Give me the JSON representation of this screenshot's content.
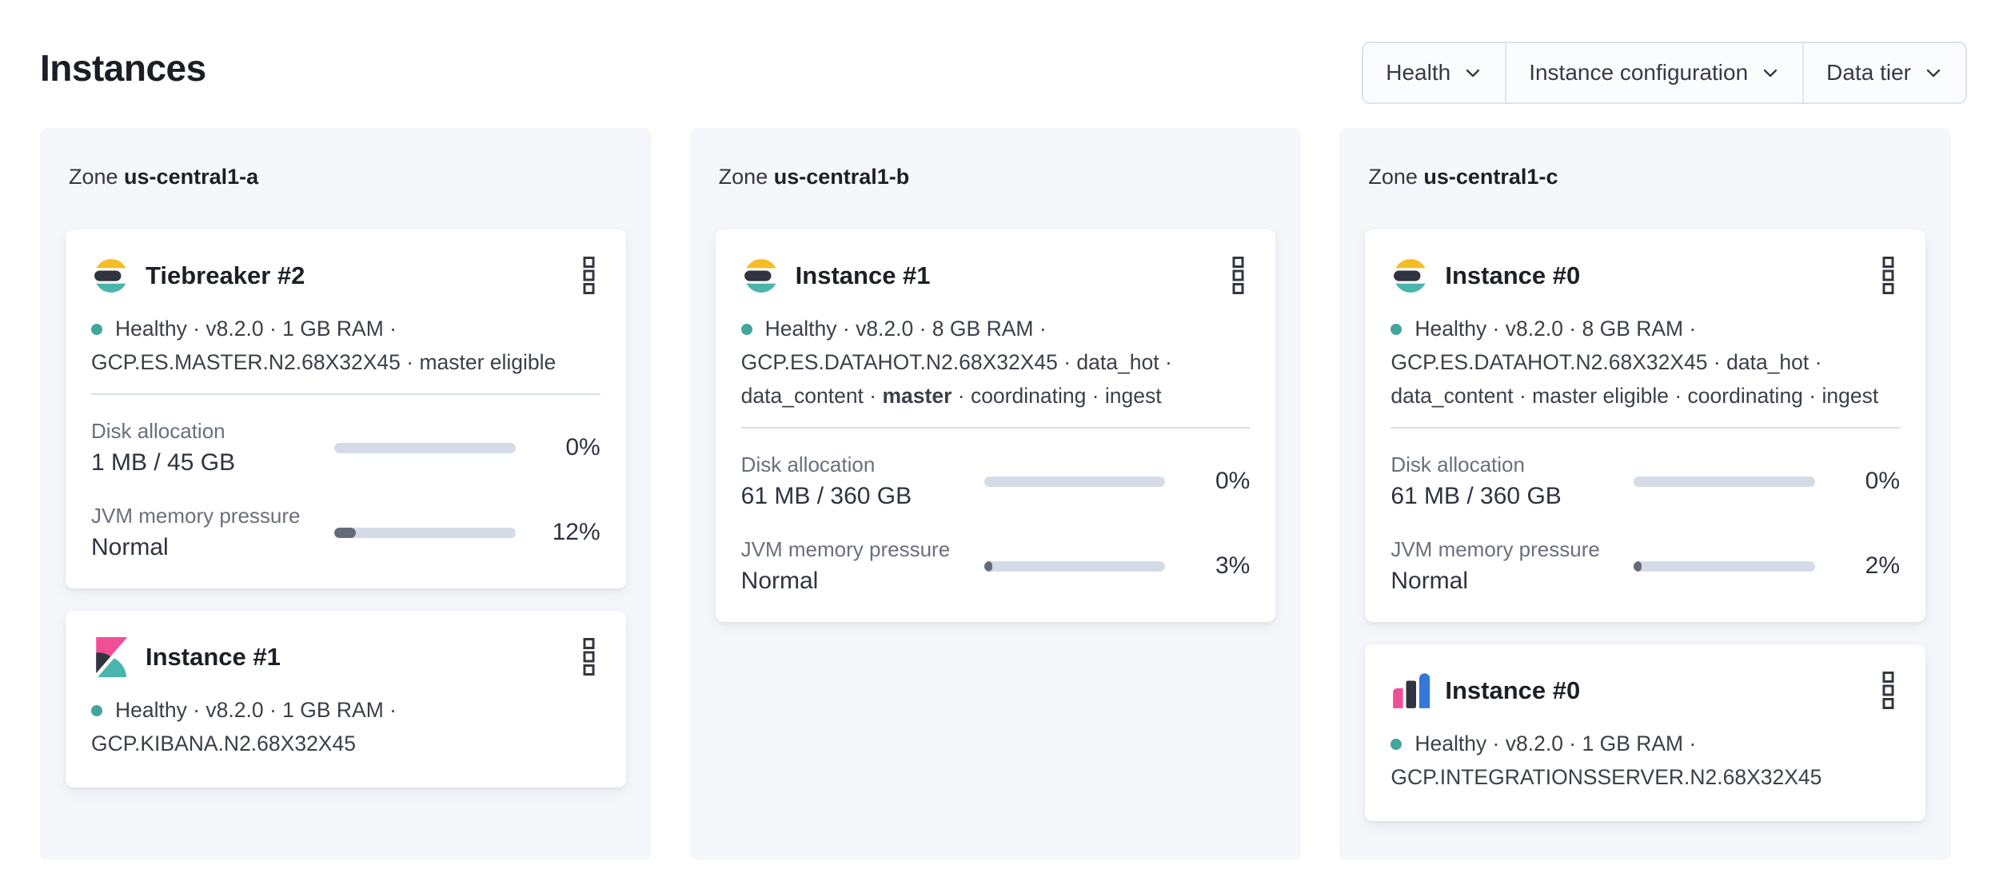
{
  "page": {
    "title": "Instances"
  },
  "filters": [
    {
      "label": "Health"
    },
    {
      "label": "Instance configuration"
    },
    {
      "label": "Data tier"
    }
  ],
  "colors": {
    "healthy_dot": "#41a69c",
    "panel_bg": "#f5f7fa",
    "bar_track": "#d5dbe6",
    "bar_fill": "#656c79",
    "es_yellow": "#f4bd24",
    "es_dark": "#2f3440",
    "es_teal": "#4ab5ac",
    "kibana_pink": "#f04e98",
    "integrations_blue": "#3577d8"
  },
  "zones": [
    {
      "label_prefix": "Zone",
      "name": "us-central1-a",
      "cards": [
        {
          "logo": "elasticsearch",
          "title": "Tiebreaker #2",
          "status": [
            {
              "t": "Healthy · v8.2.0 · 1 GB RAM · GCP.ES.MASTER.N2.68X32X45 · master eligible"
            }
          ],
          "metrics": [
            {
              "label": "Disk allocation",
              "value": "1 MB / 45 GB",
              "percent": "0%",
              "fill": 0
            },
            {
              "label": "JVM memory pressure",
              "value": "Normal",
              "percent": "12%",
              "fill": 12
            }
          ]
        },
        {
          "logo": "kibana",
          "title": "Instance #1",
          "status": [
            {
              "t": "Healthy · v8.2.0 · 1 GB RAM · GCP.KIBANA.N2.68X32X45"
            }
          ]
        }
      ]
    },
    {
      "label_prefix": "Zone",
      "name": "us-central1-b",
      "cards": [
        {
          "logo": "elasticsearch",
          "title": "Instance #1",
          "status": [
            {
              "t": "Healthy · v8.2.0 · 8 GB RAM · GCP.ES.DATAHOT.N2.68X32X45 · data_hot · data_content · "
            },
            {
              "t": "master",
              "b": true
            },
            {
              "t": " · coordinating · ingest"
            }
          ],
          "metrics": [
            {
              "label": "Disk allocation",
              "value": "61 MB / 360 GB",
              "percent": "0%",
              "fill": 0
            },
            {
              "label": "JVM memory pressure",
              "value": "Normal",
              "percent": "3%",
              "fill": 3
            }
          ]
        }
      ]
    },
    {
      "label_prefix": "Zone",
      "name": "us-central1-c",
      "cards": [
        {
          "logo": "elasticsearch",
          "title": "Instance #0",
          "status": [
            {
              "t": "Healthy · v8.2.0 · 8 GB RAM · GCP.ES.DATAHOT.N2.68X32X45 · data_hot · data_content · master eligible · coordinating · ingest"
            }
          ],
          "metrics": [
            {
              "label": "Disk allocation",
              "value": "61 MB / 360 GB",
              "percent": "0%",
              "fill": 0
            },
            {
              "label": "JVM memory pressure",
              "value": "Normal",
              "percent": "2%",
              "fill": 2
            }
          ]
        },
        {
          "logo": "integrations-server",
          "title": "Instance #0",
          "status": [
            {
              "t": "Healthy · v8.2.0 · 1 GB RAM · GCP.INTEGRATIONSSERVER.N2.68X32X45"
            }
          ]
        }
      ]
    }
  ]
}
